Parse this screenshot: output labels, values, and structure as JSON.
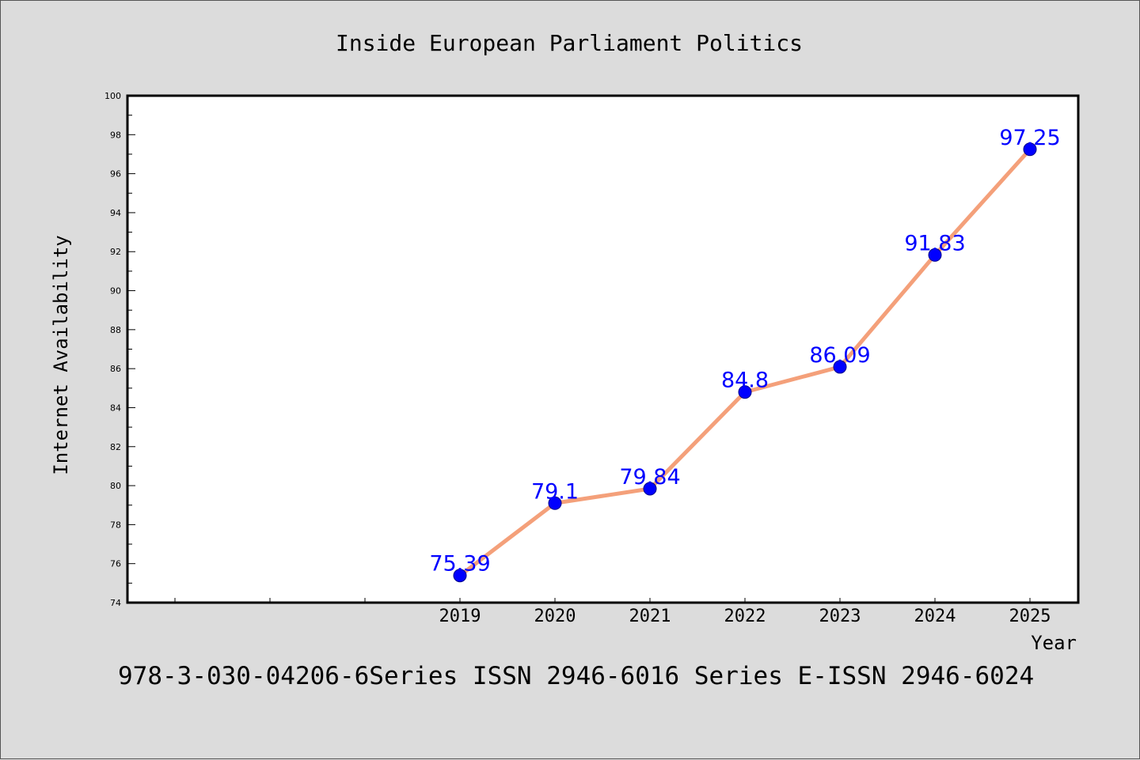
{
  "chart_data": {
    "type": "line",
    "title": "Inside European Parliament Politics",
    "xlabel": "Year",
    "ylabel": "Internet Availability",
    "x": [
      "2019",
      "2020",
      "2021",
      "2022",
      "2023",
      "2024",
      "2025"
    ],
    "values": [
      75.39,
      79.1,
      79.84,
      84.8,
      86.09,
      91.83,
      97.25
    ],
    "data_labels": [
      "75.39",
      "79.1",
      "79.84",
      "84.8",
      "86.09",
      "91.83",
      "97.25"
    ],
    "ylim": [
      74,
      100
    ],
    "yticks": [
      "74",
      "76",
      "78",
      "80",
      "82",
      "84",
      "86",
      "88",
      "90",
      "92",
      "94",
      "96",
      "98",
      "100"
    ],
    "line_color": "#f4a07a",
    "marker_color": "#0000ff",
    "label_color": "#0000ff",
    "grid": false
  },
  "footer_text": "978-3-030-04206-6Series ISSN 2946-6016 Series E-ISSN 2946-6024"
}
